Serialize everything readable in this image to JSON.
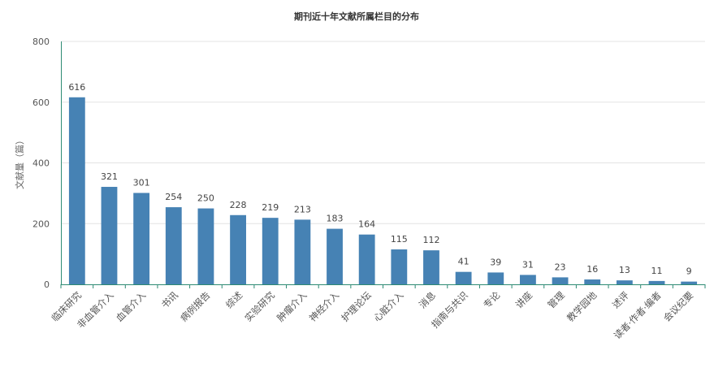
{
  "chart_data": {
    "type": "bar",
    "title": "期刊近十年文献所属栏目的分布",
    "ylabel": "文献量（篇）",
    "xlabel": "",
    "ylim": [
      0,
      800
    ],
    "yticks": [
      0,
      200,
      400,
      600,
      800
    ],
    "grid": true,
    "legend": "none",
    "categories": [
      "临床研究",
      "非血管介入",
      "血管介入",
      "书讯",
      "病例报告",
      "综述",
      "实验研究",
      "肿瘤介入",
      "神经介入",
      "护理论坛",
      "心脏介入",
      "消息",
      "指南与共识",
      "专论",
      "讲座",
      "管理",
      "教学园地",
      "述评",
      "读者·作者·编者",
      "会议纪要"
    ],
    "values": [
      616,
      321,
      301,
      254,
      250,
      228,
      219,
      213,
      183,
      164,
      115,
      112,
      41,
      39,
      31,
      23,
      16,
      13,
      11,
      9
    ],
    "colors": {
      "bar": "#4682b4",
      "axis": "#2e8b74",
      "grid": "#e3e3e3"
    }
  }
}
